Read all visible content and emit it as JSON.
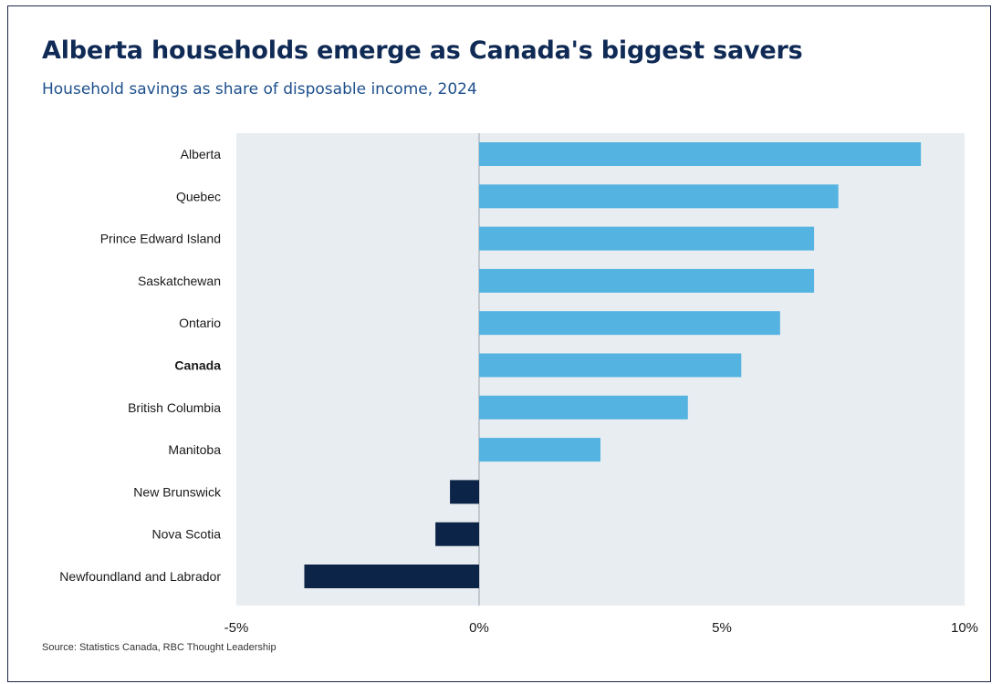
{
  "chart_data": {
    "type": "bar",
    "orientation": "horizontal",
    "title": "Alberta households emerge as Canada's biggest savers",
    "subtitle": "Household savings as share of disposable income, 2024",
    "source": "Source: Statistics Canada, RBC Thought Leadership",
    "categories": [
      "Alberta",
      "Quebec",
      "Prince Edward Island",
      "Saskatchewan",
      "Ontario",
      "Canada",
      "British Columbia",
      "Manitoba",
      "New Brunswick",
      "Nova Scotia",
      "Newfoundland and Labrador"
    ],
    "values": [
      9.1,
      7.4,
      6.9,
      6.9,
      6.2,
      5.4,
      4.3,
      2.5,
      -0.6,
      -0.9,
      -3.6
    ],
    "highlight_category": "Canada",
    "xlim": [
      -5,
      10
    ],
    "xticks": [
      -5,
      0,
      5,
      10
    ],
    "xtick_labels": [
      "-5%",
      "0%",
      "5%",
      "10%"
    ],
    "colors": {
      "positive": "#54b3e0",
      "negative": "#0b2447",
      "plot_bg": "#e8edf1",
      "zero_line": "#9aa3ab"
    },
    "grid": false
  }
}
